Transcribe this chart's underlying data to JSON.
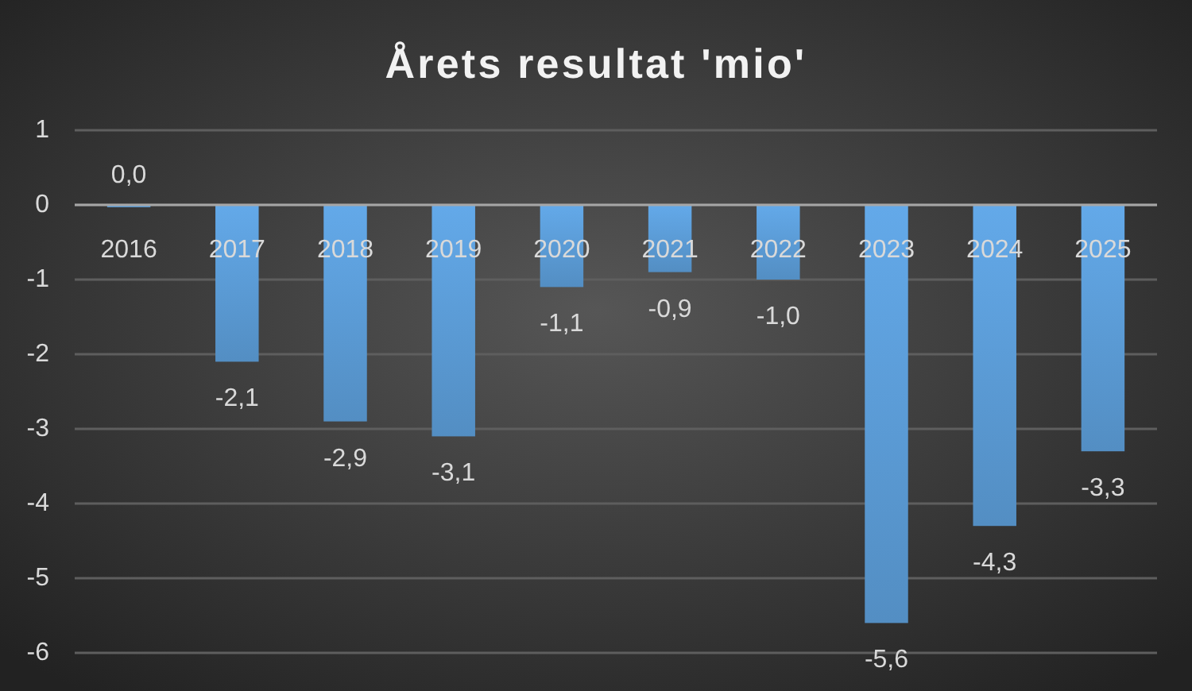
{
  "chart_data": {
    "type": "bar",
    "title": "Årets resultat 'mio'",
    "categories": [
      "2016",
      "2017",
      "2018",
      "2019",
      "2020",
      "2021",
      "2022",
      "2023",
      "2024",
      "2025"
    ],
    "values": [
      0.0,
      -2.1,
      -2.9,
      -3.1,
      -1.1,
      -0.9,
      -1.0,
      -5.6,
      -4.3,
      -3.3
    ],
    "value_labels": [
      "0,0",
      "-2,1",
      "-2,9",
      "-3,1",
      "-1,1",
      "-0,9",
      "-1,0",
      "-5,6",
      "-4,3",
      "-3,3"
    ],
    "color": "#5b9bd5",
    "ylim": [
      -6,
      1
    ],
    "yticks": [
      -6,
      -5,
      -4,
      -3,
      -2,
      -1,
      0,
      1
    ],
    "grid": "y"
  }
}
